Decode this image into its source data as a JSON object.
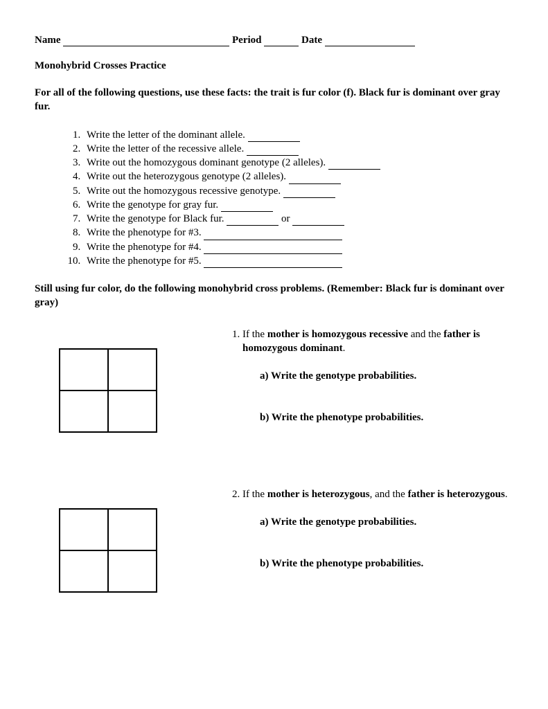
{
  "header": {
    "name_label": "Name",
    "period_label": "Period",
    "date_label": "Date"
  },
  "title": "Monohybrid Crosses Practice",
  "instructions": "For all of the following questions, use these facts: the trait is fur color (f). Black fur is dominant over gray fur.",
  "questions": [
    "Write the letter of the dominant allele.",
    "Write the letter of the recessive allele.",
    "Write out the homozygous dominant genotype (2 alleles).",
    "Write out the heterozygous genotype (2 alleles).",
    "Write out the homozygous recessive genotype.",
    "Write the genotype for gray fur.",
    "Write the genotype for Black fur.",
    "Write the phenotype for #3.",
    "Write the phenotype for #4.",
    "Write the phenotype for #5."
  ],
  "q7_or": " or ",
  "section2_title": "Still using fur color, do the following monohybrid cross problems. (Remember: Black fur is dominant over gray)",
  "problems": [
    {
      "intro_pre": "If the ",
      "intro_b1": "mother is homozygous recessive",
      "intro_mid": " and the ",
      "intro_b2": "father is homozygous dominant",
      "intro_end": ".",
      "a": "a) Write the genotype probabilities.",
      "b": "b) Write the phenotype probabilities."
    },
    {
      "intro_pre": "If the ",
      "intro_b1": "mother is heterozygous",
      "intro_mid": ", and the ",
      "intro_b2": "father is heterozygous",
      "intro_end": ".",
      "a": "a) Write the genotype probabilities.",
      "b": "b) Write the phenotype probabilities."
    }
  ]
}
